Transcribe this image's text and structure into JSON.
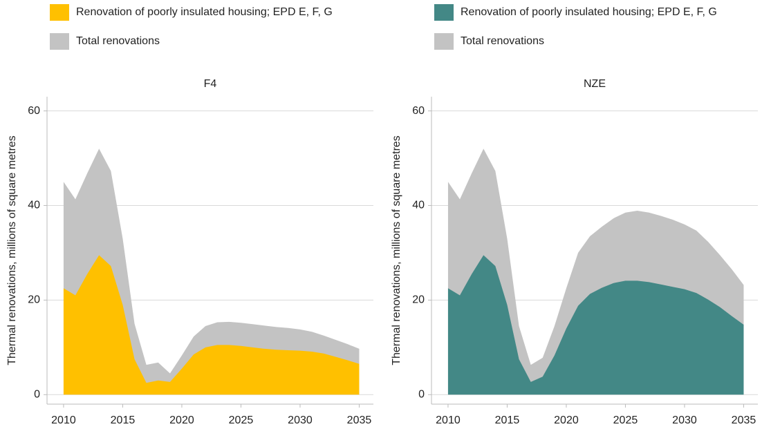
{
  "chart_data": [
    {
      "type": "area",
      "title": "F4",
      "ylabel": "Thermal renovations, millions of square metres",
      "x": [
        2010,
        2011,
        2012,
        2013,
        2014,
        2015,
        2016,
        2017,
        2018,
        2019,
        2020,
        2021,
        2022,
        2023,
        2024,
        2025,
        2026,
        2027,
        2028,
        2029,
        2030,
        2031,
        2032,
        2033,
        2034,
        2035
      ],
      "series": [
        {
          "name": "Renovation of poorly insulated housing; EPD E, F, G",
          "color": "#ffc000",
          "values": [
            22.5,
            21,
            25.5,
            29.5,
            27.2,
            19,
            7.5,
            2.5,
            3,
            2.7,
            5.5,
            8.5,
            10,
            10.5,
            10.5,
            10.3,
            10,
            9.7,
            9.5,
            9.4,
            9.3,
            9.1,
            8.7,
            8,
            7.3,
            6.5
          ]
        },
        {
          "name": "Total renovations",
          "color": "#c3c3c3",
          "values": [
            45,
            41.3,
            46.8,
            52,
            47.3,
            33,
            15,
            6.3,
            6.8,
            4.5,
            8.3,
            12.3,
            14.5,
            15.3,
            15.4,
            15.2,
            14.9,
            14.6,
            14.3,
            14.1,
            13.8,
            13.3,
            12.5,
            11.6,
            10.7,
            9.7
          ]
        }
      ],
      "xlim": [
        2008.6,
        2036.2
      ],
      "xticks": [
        2010,
        2015,
        2020,
        2025,
        2030,
        2035
      ],
      "ylim": [
        -2,
        63
      ],
      "yticks": [
        0,
        20,
        40,
        60
      ],
      "grid": true
    },
    {
      "type": "area",
      "title": "NZE",
      "ylabel": "Thermal renovations, millions of square metres",
      "x": [
        2010,
        2011,
        2012,
        2013,
        2014,
        2015,
        2016,
        2017,
        2018,
        2019,
        2020,
        2021,
        2022,
        2023,
        2024,
        2025,
        2026,
        2027,
        2028,
        2029,
        2030,
        2031,
        2032,
        2033,
        2034,
        2035
      ],
      "series": [
        {
          "name": "Renovation of poorly insulated housing; EPD E, F, G",
          "color": "#438886",
          "values": [
            22.5,
            21,
            25.5,
            29.5,
            27.2,
            19,
            7.5,
            2.7,
            3.8,
            8.3,
            14,
            18.8,
            21.3,
            22.6,
            23.6,
            24.1,
            24.1,
            23.8,
            23.3,
            22.8,
            22.3,
            21.5,
            20.1,
            18.5,
            16.6,
            14.8
          ]
        },
        {
          "name": "Total renovations",
          "color": "#c3c3c3",
          "values": [
            45,
            41.3,
            46.8,
            52,
            47.3,
            33,
            14.5,
            6.3,
            7.8,
            14.5,
            22.5,
            30,
            33.5,
            35.5,
            37.3,
            38.5,
            38.9,
            38.5,
            37.8,
            37,
            36,
            34.7,
            32.3,
            29.5,
            26.5,
            23.2
          ]
        }
      ],
      "xlim": [
        2008.6,
        2036.2
      ],
      "xticks": [
        2010,
        2015,
        2020,
        2025,
        2030,
        2035
      ],
      "ylim": [
        -2,
        63
      ],
      "yticks": [
        0,
        20,
        40,
        60
      ],
      "grid": true
    }
  ]
}
